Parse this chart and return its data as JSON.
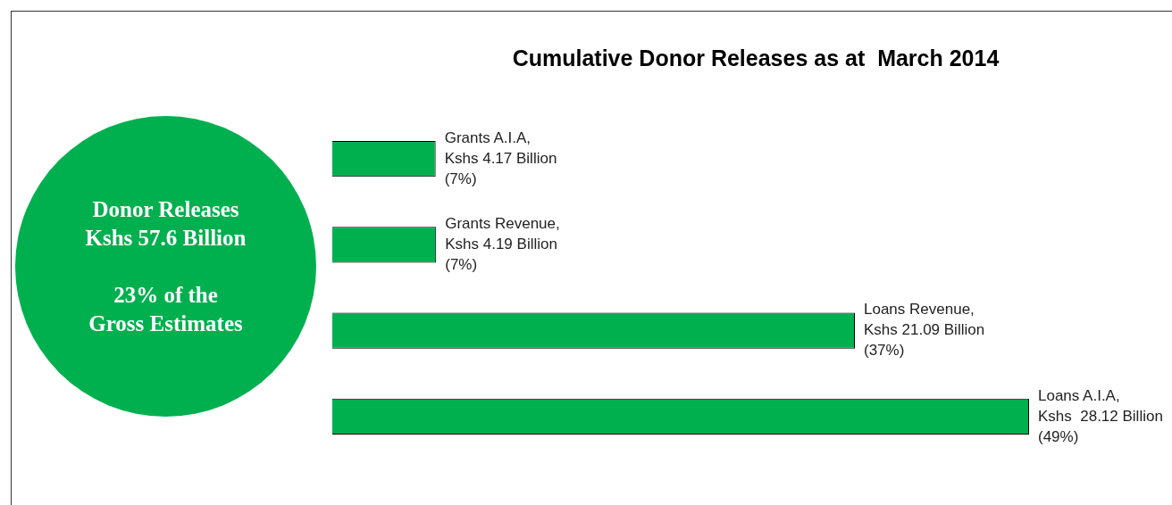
{
  "chart_data": {
    "type": "bar",
    "orientation": "horizontal",
    "title": "Cumulative Donor Releases as at  March 2014",
    "categories": [
      null,
      null,
      null,
      null
    ],
    "values": [
      4.17,
      4.19,
      21.09,
      28.12
    ],
    "color": "#00b04f",
    "value_labels": [
      "Grants A.I.A,\nKshs 4.17 Billion\n(7%)",
      "Grants Revenue,\nKshs 4.19 Billion\n(7%)",
      "Loans Revenue,\nKshs 21.09 Billion\n(37%)",
      "Loans A.I.A,\nKshs  28.12 Billion\n(49%)"
    ],
    "annotations": [
      "Donor Releases\nKshs 57.6 Billion",
      "23% of the\nGross Estimates"
    ],
    "tick_labels": false
  }
}
